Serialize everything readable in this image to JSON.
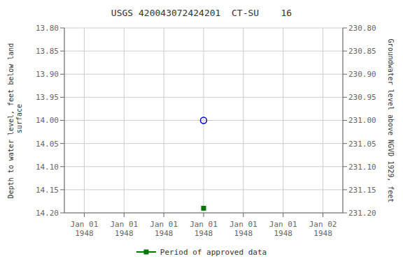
{
  "chart_data": {
    "type": "scatter",
    "title": "USGS 420043072424201  CT-SU    16",
    "categories": [
      "Jan 01\n1948",
      "Jan 01\n1948",
      "Jan 01\n1948",
      "Jan 01\n1948",
      "Jan 01\n1948",
      "Jan 01\n1948",
      "Jan 02\n1948"
    ],
    "ylabel": "Depth to water level, feet below land\n surface",
    "y2label": "Groundwater level above NGVD 1929, feet",
    "series": [
      {
        "color": "#0000bb",
        "marker": "circle_open",
        "values": [
          null,
          null,
          null,
          14.0,
          null,
          null,
          null
        ]
      },
      {
        "name": "Period of approved data",
        "color": "#007700",
        "marker": "square",
        "values": [
          null,
          null,
          null,
          14.19,
          null,
          null,
          null
        ]
      }
    ],
    "ylim": [
      14.2,
      13.8
    ],
    "yticks": [
      {
        "value": 13.8,
        "label": "13.80"
      },
      13.85,
      {
        "value": 13.9,
        "label": "13.90"
      },
      13.95,
      {
        "value": 14.0,
        "label": "14.00"
      },
      14.05,
      {
        "value": 14.1,
        "label": "14.10"
      },
      14.15,
      {
        "value": 14.2,
        "label": "14.20"
      }
    ],
    "y2lim": [
      231.2,
      230.8
    ],
    "y2ticks": [
      {
        "value": 231.2,
        "label": "231.20"
      },
      231.15,
      {
        "value": 231.1,
        "label": "231.10"
      },
      231.05,
      {
        "value": 231.0,
        "label": "231.00"
      },
      230.95,
      {
        "value": 230.9,
        "label": "230.90"
      },
      230.85,
      {
        "value": 230.8,
        "label": "230.80"
      }
    ],
    "grid": true,
    "legend": "bottom"
  }
}
